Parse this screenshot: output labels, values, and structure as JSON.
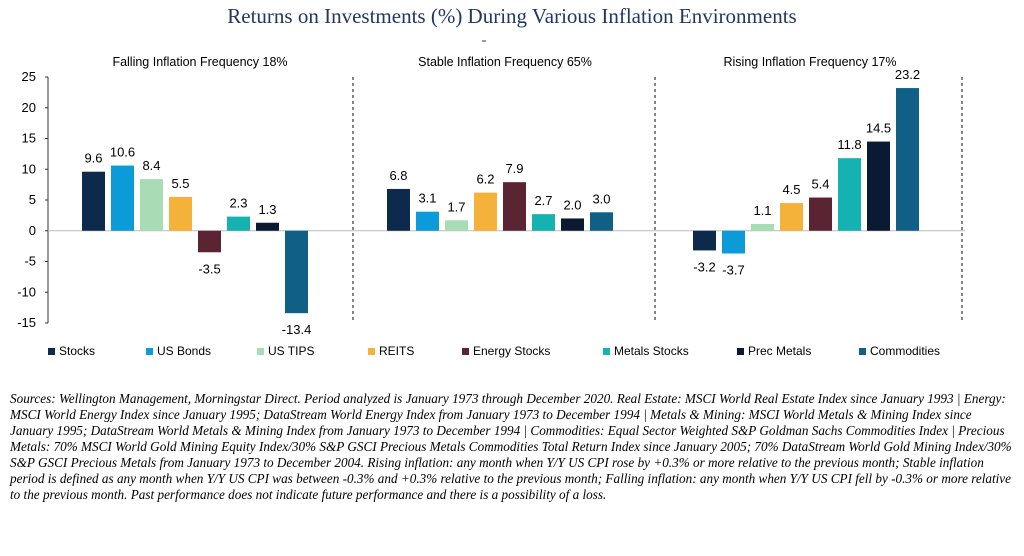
{
  "title": "Returns on Investments (%) During Various Inflation Environments",
  "colors": [
    "#0d2a4d",
    "#0a9bd8",
    "#a8dcb4",
    "#f5b23a",
    "#5a2433",
    "#14b2b0",
    "#0a1a33",
    "#0f5f86"
  ],
  "chart_data": {
    "type": "bar",
    "ylim": [
      -15,
      25
    ],
    "yticks": [
      25,
      20,
      15,
      10,
      5,
      0,
      -5,
      -10,
      -15
    ],
    "grid": false,
    "legend_placement": "bottom",
    "series_names": [
      "Stocks",
      "US Bonds",
      "US TIPS",
      "REITS",
      "Energy Stocks",
      "Metals Stocks",
      "Prec Metals",
      "Commodities"
    ],
    "panels": [
      {
        "title": "Falling Inflation Frequency 18%",
        "values": [
          9.6,
          10.6,
          8.4,
          5.5,
          -3.5,
          2.3,
          1.3,
          -13.4
        ],
        "labels": [
          "9.6",
          "10.6",
          "8.4",
          "5.5",
          "-3.5",
          "2.3",
          "1.3",
          "-13.4"
        ]
      },
      {
        "title": "Stable Inflation Frequency 65%",
        "values": [
          6.8,
          3.1,
          1.7,
          6.2,
          7.9,
          2.7,
          2.0,
          3.0
        ],
        "labels": [
          "6.8",
          "3.1",
          "1.7",
          "6.2",
          "7.9",
          "2.7",
          "2.0",
          "3.0"
        ]
      },
      {
        "title": "Rising Inflation Frequency 17%",
        "values": [
          -3.2,
          -3.7,
          1.1,
          4.5,
          5.4,
          11.8,
          14.5,
          23.2
        ],
        "labels": [
          "-3.2",
          "-3.7",
          "1.1",
          "4.5",
          "5.4",
          "11.8",
          "14.5",
          "23.2"
        ]
      }
    ]
  },
  "sources": "Sources: Wellington Management, Morningstar Direct. Period analyzed is January 1973 through December 2020. Real Estate: MSCI World Real Estate Index since January 1993 | Energy: MSCI World Energy Index since January 1995; DataStream World Energy Index from January 1973 to December 1994 |  Metals & Mining: MSCI World Metals & Mining Index since January 1995; DataStream World Metals & Mining Index from January 1973 to December 1994 | Commodities: Equal Sector Weighted S&P Goldman Sachs Commodities Index | Precious  Metals: 70% MSCI World Gold Mining Equity Index/30% S&P GSCI Precious Metals Commodities Total Return Index since January 2005; 70% DataStream World Gold Mining Index/30% S&P GSCI Precious Metals from January 1973 to December 2004. Rising inflation: any month when Y/Y US CPI rose by +0.3% or more relative to the previous month; Stable inflation period is defined as any month when Y/Y US CPI was between -0.3% and +0.3% relative to the previous month; Falling inflation: any month when Y/Y US CPI fell by -0.3% or more relative to the previous month. Past performance does not indicate future performance and there is a possibility of a loss."
}
